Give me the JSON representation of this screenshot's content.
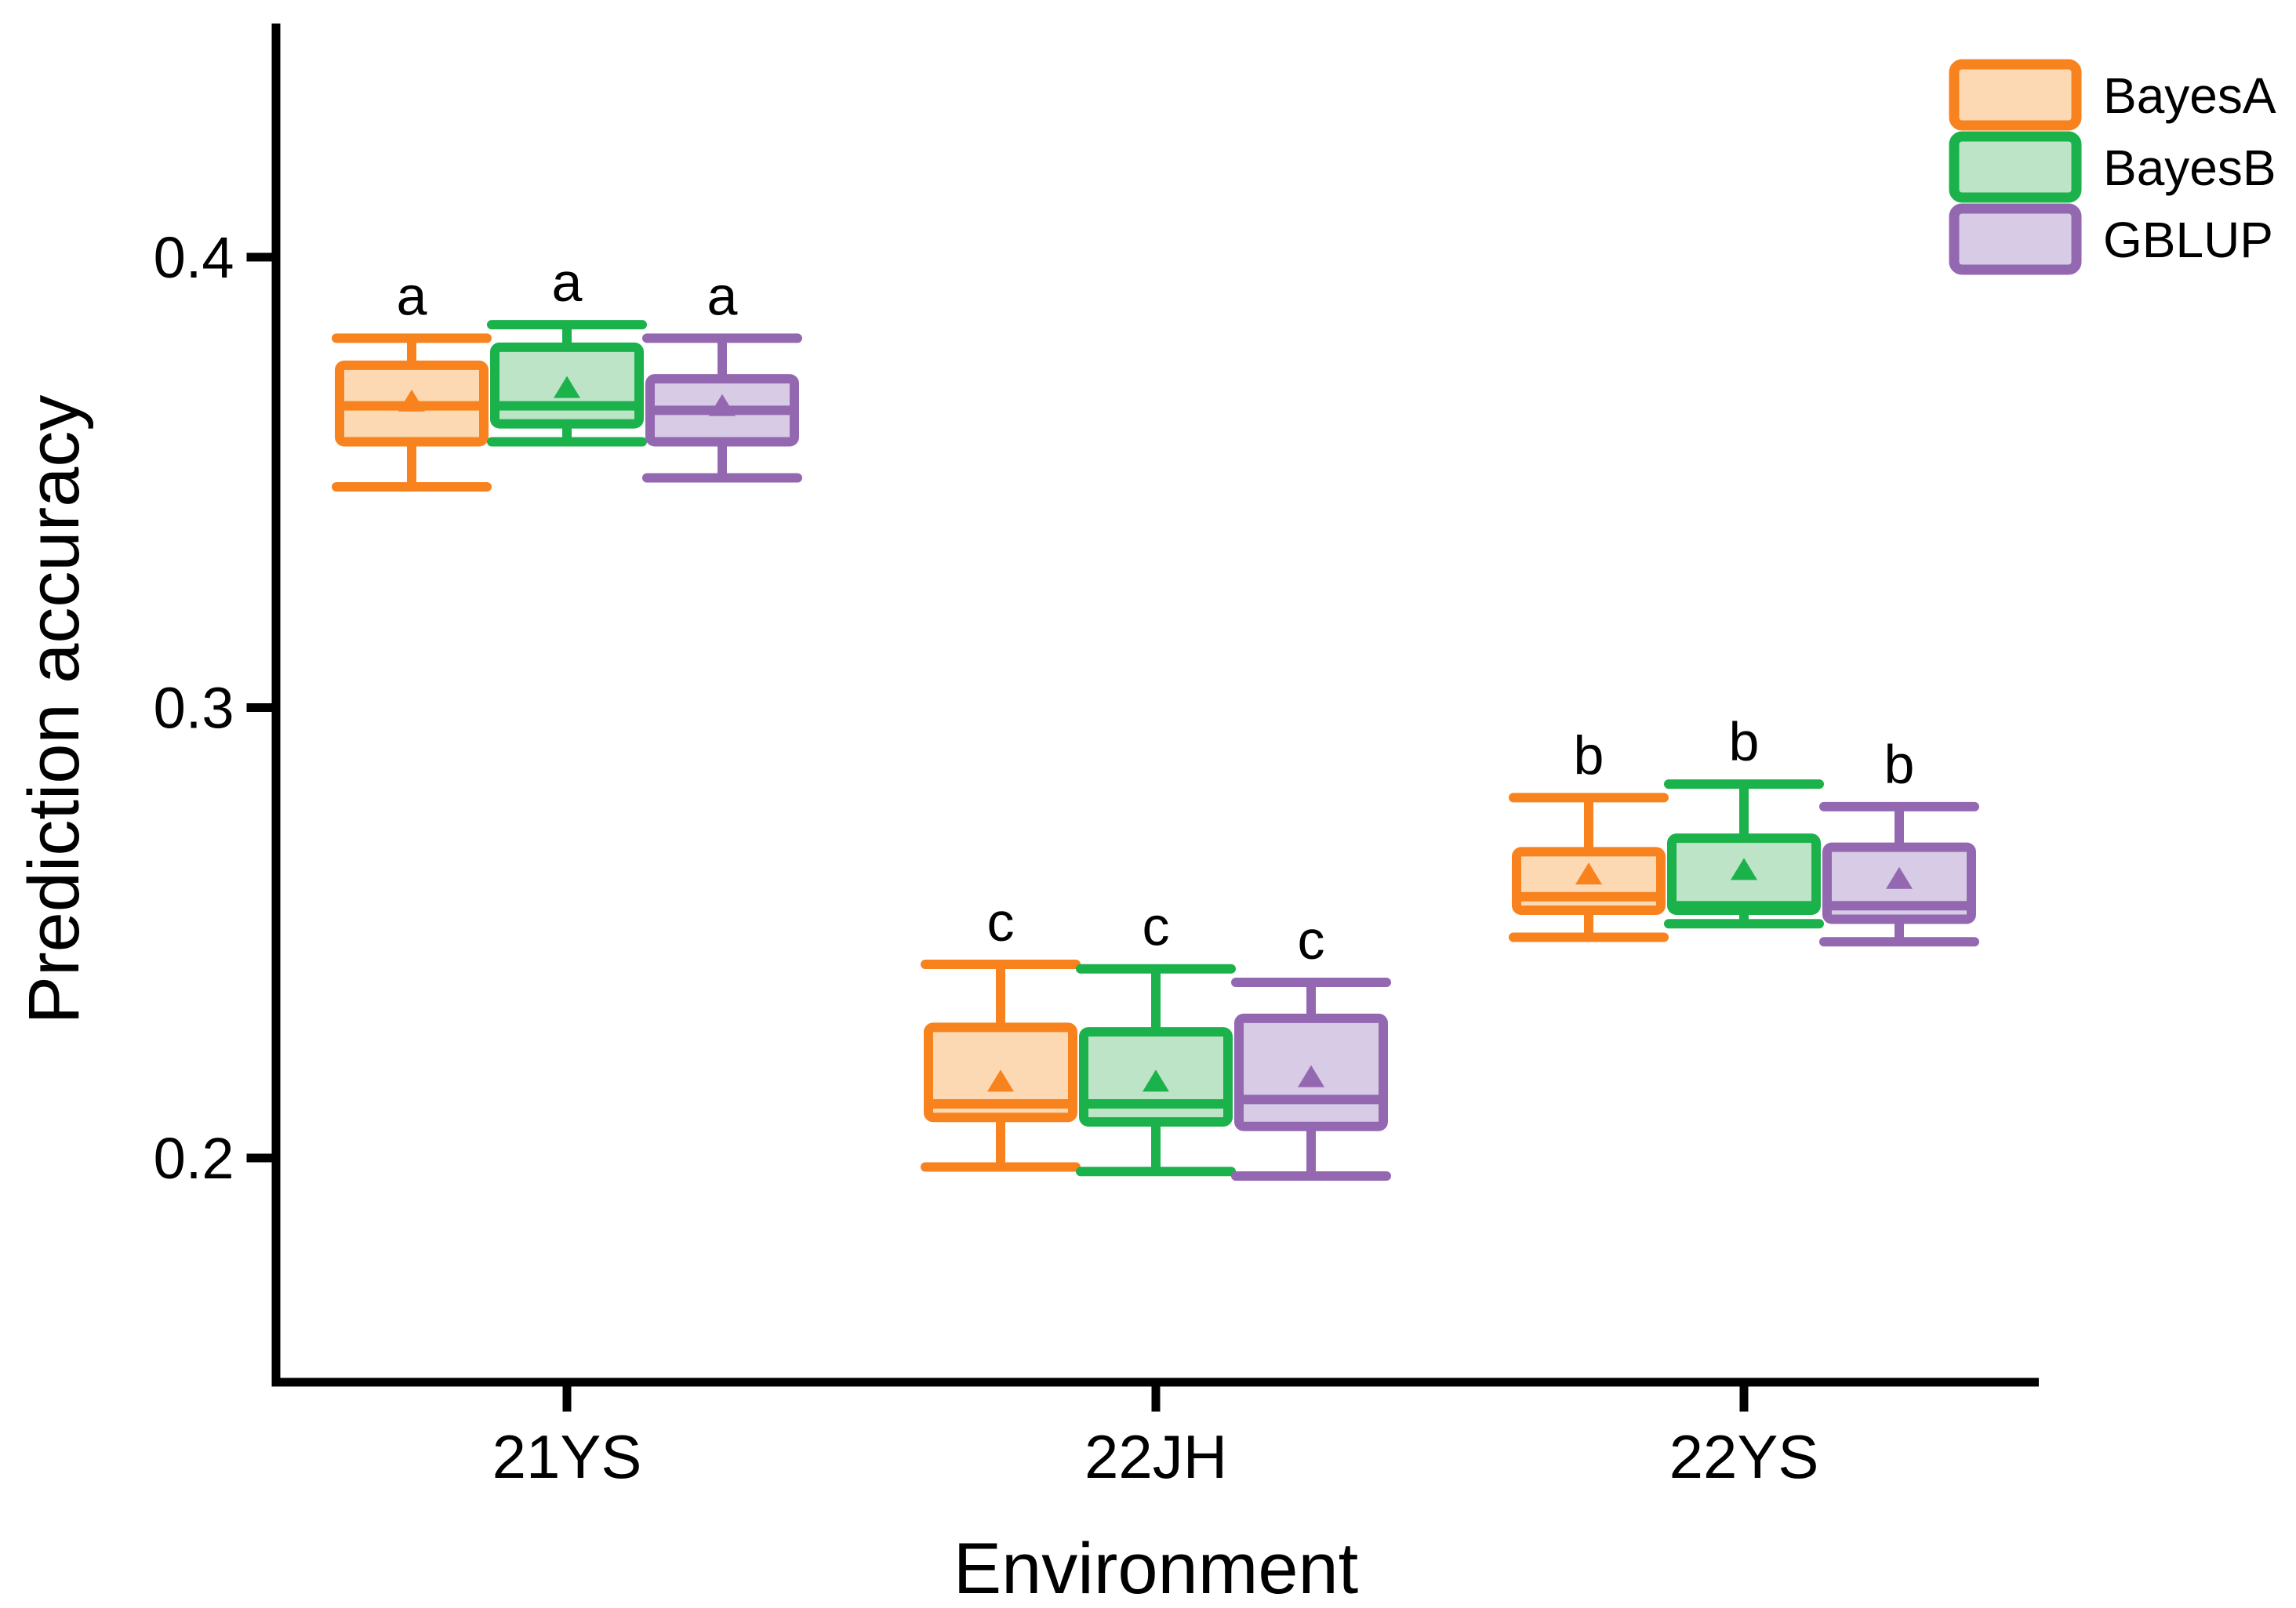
{
  "figure": {
    "background": "#ffffff",
    "text_color": "#000000",
    "axis_color": "#000000"
  },
  "chart_data": {
    "type": "boxplot",
    "title": "",
    "xlabel": "Environment",
    "ylabel": "Prediction accuracy",
    "categories": [
      "21YS",
      "22JH",
      "22YS"
    ],
    "significance_letters": [
      "a",
      "c",
      "b"
    ],
    "y_ticks": [
      "0.2",
      "0.3",
      "0.4"
    ],
    "y_axis_range": [
      0.15,
      0.452
    ],
    "grid": "off",
    "legend_position": "top-right",
    "legend_entries": [
      "BayesA",
      "BayesB",
      "GBLUP"
    ],
    "series": [
      {
        "name": "BayesA",
        "color": "#F8821E",
        "fill": "#FCD9B2",
        "boxes": [
          {
            "category": "21YS",
            "whisker_low": 0.349,
            "q1": 0.359,
            "median": 0.367,
            "q3": 0.376,
            "whisker_high": 0.382,
            "mean": 0.368,
            "letter": "a"
          },
          {
            "category": "22JH",
            "whisker_low": 0.198,
            "q1": 0.209,
            "median": 0.212,
            "q3": 0.229,
            "whisker_high": 0.243,
            "mean": 0.217,
            "letter": "c"
          },
          {
            "category": "22YS",
            "whisker_low": 0.249,
            "q1": 0.255,
            "median": 0.258,
            "q3": 0.268,
            "whisker_high": 0.28,
            "mean": 0.263,
            "letter": "b"
          }
        ]
      },
      {
        "name": "BayesB",
        "color": "#1CB24B",
        "fill": "#BDE4C6",
        "boxes": [
          {
            "category": "21YS",
            "whisker_low": 0.359,
            "q1": 0.363,
            "median": 0.367,
            "q3": 0.38,
            "whisker_high": 0.385,
            "mean": 0.371,
            "letter": "a"
          },
          {
            "category": "22JH",
            "whisker_low": 0.197,
            "q1": 0.208,
            "median": 0.212,
            "q3": 0.228,
            "whisker_high": 0.242,
            "mean": 0.217,
            "letter": "c"
          },
          {
            "category": "22YS",
            "whisker_low": 0.252,
            "q1": 0.255,
            "median": 0.256,
            "q3": 0.271,
            "whisker_high": 0.283,
            "mean": 0.264,
            "letter": "b"
          }
        ]
      },
      {
        "name": "GBLUP",
        "color": "#9468B1",
        "fill": "#D7CBE5",
        "boxes": [
          {
            "category": "21YS",
            "whisker_low": 0.351,
            "q1": 0.359,
            "median": 0.366,
            "q3": 0.373,
            "whisker_high": 0.382,
            "mean": 0.367,
            "letter": "a"
          },
          {
            "category": "22JH",
            "whisker_low": 0.196,
            "q1": 0.207,
            "median": 0.213,
            "q3": 0.231,
            "whisker_high": 0.239,
            "mean": 0.218,
            "letter": "c"
          },
          {
            "category": "22YS",
            "whisker_low": 0.248,
            "q1": 0.253,
            "median": 0.256,
            "q3": 0.269,
            "whisker_high": 0.278,
            "mean": 0.262,
            "letter": "b"
          }
        ]
      }
    ]
  }
}
